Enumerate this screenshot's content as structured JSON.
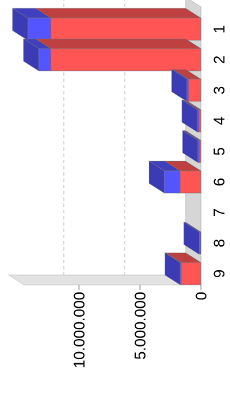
{
  "chart_data": {
    "type": "bar",
    "stacked": true,
    "orientation": "horizontal",
    "rotated": true,
    "three_d": true,
    "categories": [
      "1",
      "2",
      "3",
      "4",
      "5",
      "6",
      "7",
      "8",
      "9"
    ],
    "series": [
      {
        "color": "#ff5555",
        "values": [
          12300000,
          12300000,
          1000000,
          150000,
          100000,
          1700000,
          0,
          0,
          1600000
        ]
      },
      {
        "color": "#5555ff",
        "values": [
          1900000,
          1000000,
          150000,
          150000,
          150000,
          1300000,
          0,
          150000,
          100000
        ]
      }
    ],
    "ylim": [
      0,
      14500000
    ],
    "yticks": [
      {
        "value": 0,
        "label": "0"
      },
      {
        "value": 5000000,
        "label": "5.000.000"
      },
      {
        "value": 10000000,
        "label": "10.000.000"
      }
    ],
    "gridlines": "dashed",
    "legend": "none"
  }
}
